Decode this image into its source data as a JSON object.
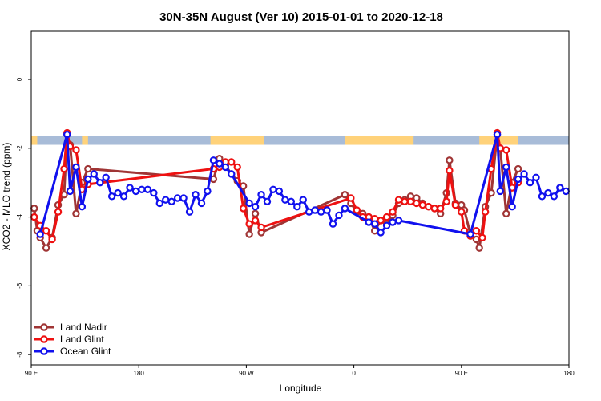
{
  "chart_data": {
    "type": "line",
    "title": "30N-35N August (Ver 10)   2015-01-01 to 2020-12-18",
    "xlabel": "Longitude",
    "ylabel": "XCO2 - MLO trend (ppm)",
    "xlim": [
      0,
      180
    ],
    "ylim": [
      -8.3,
      1.4
    ],
    "x_ticks": [
      {
        "value": 0,
        "label": "90 E"
      },
      {
        "value": 36,
        "label": "180"
      },
      {
        "value": 72,
        "label": "90 W"
      },
      {
        "value": 108,
        "label": "0"
      },
      {
        "value": 144,
        "label": "90 E"
      },
      {
        "value": 180,
        "label": "180"
      }
    ],
    "y_ticks": [
      0,
      -2,
      -4,
      -6,
      -8
    ],
    "legend_position": "bottom-left",
    "land_ocean_band": {
      "y_top": -1.65,
      "y_bottom": -1.9,
      "land_color": "#ffd27a",
      "ocean_color": "#a8bcd8",
      "land_segments": [
        [
          0,
          2
        ],
        [
          17,
          19
        ],
        [
          60,
          78
        ],
        [
          105,
          128
        ],
        [
          150,
          163
        ]
      ]
    },
    "series": [
      {
        "name": "Land Nadir",
        "color": "#a03535",
        "points": [
          [
            1,
            -3.75
          ],
          [
            2,
            -4.4
          ],
          [
            3,
            -4.6
          ],
          [
            5,
            -4.9
          ],
          [
            7,
            -4.6
          ],
          [
            9,
            -3.65
          ],
          [
            11,
            -3.35
          ],
          [
            12,
            -1.6
          ],
          [
            13,
            -1.9
          ],
          [
            15,
            -3.9
          ],
          [
            17,
            -3.0
          ],
          [
            19,
            -2.6
          ],
          [
            61,
            -2.9
          ],
          [
            63,
            -2.3
          ],
          [
            65,
            -2.5
          ],
          [
            67,
            -2.75
          ],
          [
            69,
            -2.95
          ],
          [
            71,
            -3.1
          ],
          [
            73,
            -4.5
          ],
          [
            75,
            -3.9
          ],
          [
            77,
            -4.45
          ],
          [
            105,
            -3.35
          ],
          [
            107,
            -3.6
          ],
          [
            109,
            -3.85
          ],
          [
            111,
            -3.9
          ],
          [
            113,
            -4.0
          ],
          [
            115,
            -4.4
          ],
          [
            117,
            -4.1
          ],
          [
            119,
            -4.2
          ],
          [
            121,
            -3.95
          ],
          [
            123,
            -3.6
          ],
          [
            125,
            -3.5
          ],
          [
            127,
            -3.4
          ],
          [
            129,
            -3.45
          ],
          [
            131,
            -3.6
          ],
          [
            133,
            -3.7
          ],
          [
            135,
            -3.75
          ],
          [
            137,
            -3.9
          ],
          [
            139,
            -3.3
          ],
          [
            140,
            -2.35
          ],
          [
            142,
            -3.6
          ],
          [
            144,
            -3.65
          ],
          [
            145,
            -3.8
          ],
          [
            147,
            -4.5
          ],
          [
            149,
            -4.65
          ],
          [
            150,
            -4.9
          ],
          [
            152,
            -3.7
          ],
          [
            154,
            -3.3
          ],
          [
            156,
            -1.6
          ],
          [
            157,
            -2.0
          ],
          [
            159,
            -3.9
          ],
          [
            161,
            -3.0
          ],
          [
            163,
            -2.6
          ]
        ]
      },
      {
        "name": "Land Glint",
        "color": "#ee1111",
        "points": [
          [
            1,
            -4.0
          ],
          [
            3,
            -4.25
          ],
          [
            5,
            -4.4
          ],
          [
            7,
            -4.65
          ],
          [
            9,
            -3.85
          ],
          [
            11,
            -2.6
          ],
          [
            12,
            -1.55
          ],
          [
            13,
            -1.95
          ],
          [
            15,
            -2.05
          ],
          [
            17,
            -3.2
          ],
          [
            19,
            -3.05
          ],
          [
            61,
            -2.6
          ],
          [
            63,
            -2.55
          ],
          [
            65,
            -2.4
          ],
          [
            67,
            -2.4
          ],
          [
            69,
            -2.55
          ],
          [
            71,
            -3.75
          ],
          [
            73,
            -4.2
          ],
          [
            75,
            -4.1
          ],
          [
            77,
            -4.3
          ],
          [
            107,
            -3.45
          ],
          [
            109,
            -3.8
          ],
          [
            111,
            -4.0
          ],
          [
            113,
            -4.0
          ],
          [
            115,
            -4.05
          ],
          [
            117,
            -4.1
          ],
          [
            119,
            -4.0
          ],
          [
            121,
            -3.85
          ],
          [
            123,
            -3.5
          ],
          [
            125,
            -3.55
          ],
          [
            127,
            -3.55
          ],
          [
            129,
            -3.6
          ],
          [
            131,
            -3.65
          ],
          [
            133,
            -3.7
          ],
          [
            135,
            -3.75
          ],
          [
            137,
            -3.75
          ],
          [
            139,
            -3.55
          ],
          [
            140,
            -2.65
          ],
          [
            142,
            -3.65
          ],
          [
            144,
            -3.85
          ],
          [
            145,
            -4.4
          ],
          [
            147,
            -4.55
          ],
          [
            149,
            -4.4
          ],
          [
            151,
            -4.6
          ],
          [
            152,
            -3.85
          ],
          [
            154,
            -2.6
          ],
          [
            156,
            -1.55
          ],
          [
            157,
            -2.0
          ],
          [
            159,
            -2.05
          ],
          [
            161,
            -3.15
          ],
          [
            163,
            -3.0
          ]
        ]
      },
      {
        "name": "Ocean Glint",
        "color": "#1111ee",
        "points": [
          [
            3,
            -4.5
          ],
          [
            12,
            -1.6
          ],
          [
            13,
            -3.25
          ],
          [
            15,
            -2.55
          ],
          [
            17,
            -3.7
          ],
          [
            19,
            -2.9
          ],
          [
            21,
            -2.75
          ],
          [
            23,
            -3.0
          ],
          [
            25,
            -2.85
          ],
          [
            27,
            -3.4
          ],
          [
            29,
            -3.3
          ],
          [
            31,
            -3.4
          ],
          [
            33,
            -3.15
          ],
          [
            35,
            -3.25
          ],
          [
            37,
            -3.2
          ],
          [
            39,
            -3.2
          ],
          [
            41,
            -3.3
          ],
          [
            43,
            -3.6
          ],
          [
            45,
            -3.5
          ],
          [
            47,
            -3.55
          ],
          [
            49,
            -3.45
          ],
          [
            51,
            -3.45
          ],
          [
            53,
            -3.85
          ],
          [
            55,
            -3.35
          ],
          [
            57,
            -3.6
          ],
          [
            59,
            -3.25
          ],
          [
            61,
            -2.35
          ],
          [
            63,
            -2.45
          ],
          [
            65,
            -2.55
          ],
          [
            67,
            -2.75
          ],
          [
            73,
            -3.6
          ],
          [
            75,
            -3.7
          ],
          [
            77,
            -3.35
          ],
          [
            79,
            -3.55
          ],
          [
            81,
            -3.2
          ],
          [
            83,
            -3.25
          ],
          [
            85,
            -3.5
          ],
          [
            87,
            -3.55
          ],
          [
            89,
            -3.7
          ],
          [
            91,
            -3.5
          ],
          [
            93,
            -3.85
          ],
          [
            95,
            -3.8
          ],
          [
            97,
            -3.85
          ],
          [
            99,
            -3.8
          ],
          [
            101,
            -4.2
          ],
          [
            103,
            -3.95
          ],
          [
            105,
            -3.75
          ],
          [
            113,
            -4.15
          ],
          [
            115,
            -4.2
          ],
          [
            117,
            -4.45
          ],
          [
            119,
            -4.25
          ],
          [
            121,
            -4.15
          ],
          [
            123,
            -4.1
          ],
          [
            147,
            -4.5
          ],
          [
            156,
            -1.6
          ],
          [
            157,
            -3.25
          ],
          [
            159,
            -2.55
          ],
          [
            161,
            -3.7
          ],
          [
            163,
            -2.9
          ],
          [
            165,
            -2.75
          ],
          [
            167,
            -3.0
          ],
          [
            169,
            -2.85
          ],
          [
            171,
            -3.4
          ],
          [
            173,
            -3.3
          ],
          [
            175,
            -3.4
          ],
          [
            177,
            -3.15
          ],
          [
            179,
            -3.25
          ]
        ]
      }
    ]
  }
}
